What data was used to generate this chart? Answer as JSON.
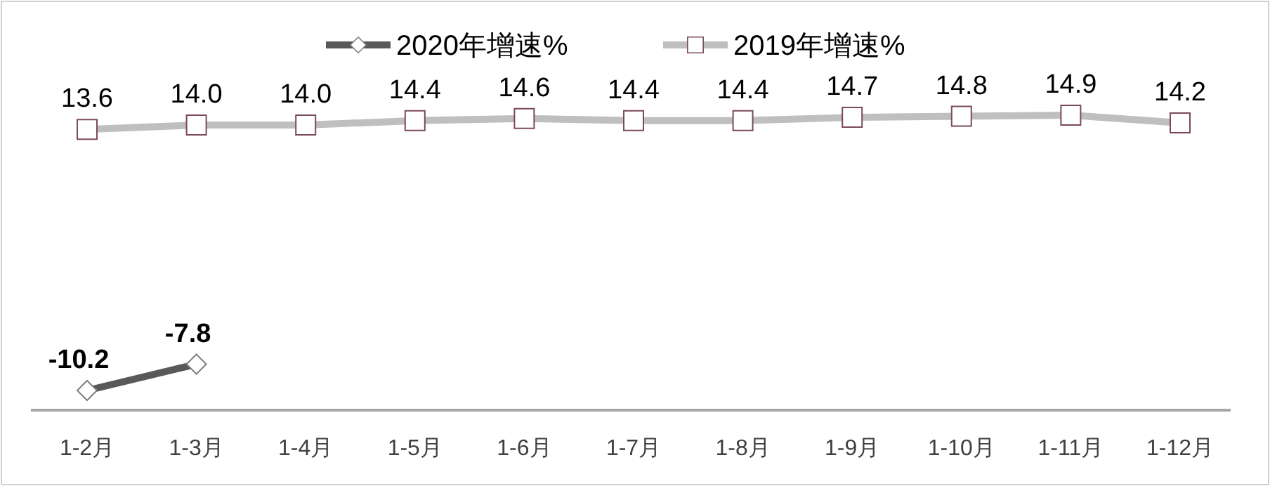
{
  "chart_data": {
    "type": "line",
    "categories": [
      "1-2月",
      "1-3月",
      "1-4月",
      "1-5月",
      "1-6月",
      "1-7月",
      "1-8月",
      "1-9月",
      "1-10月",
      "1-11月",
      "1-12月"
    ],
    "series": [
      {
        "name": "2020年增速%",
        "color": "#595959",
        "marker": "diamond",
        "values": [
          -10.2,
          -7.8,
          null,
          null,
          null,
          null,
          null,
          null,
          null,
          null,
          null
        ],
        "value_labels": [
          "-10.2",
          "-7.8",
          null,
          null,
          null,
          null,
          null,
          null,
          null,
          null,
          null
        ]
      },
      {
        "name": "2019年增速%",
        "color": "#bfbfbf",
        "marker": "square",
        "values": [
          13.6,
          14,
          14,
          14.4,
          14.6,
          14.4,
          14.4,
          14.7,
          14.8,
          14.9,
          14.2
        ],
        "value_labels": [
          "13.6",
          "14.0",
          "14.0",
          "14.4",
          "14.6",
          "14.4",
          "14.4",
          "14.7",
          "14.8",
          "14.9",
          "14.2"
        ]
      }
    ],
    "legend": "top"
  }
}
